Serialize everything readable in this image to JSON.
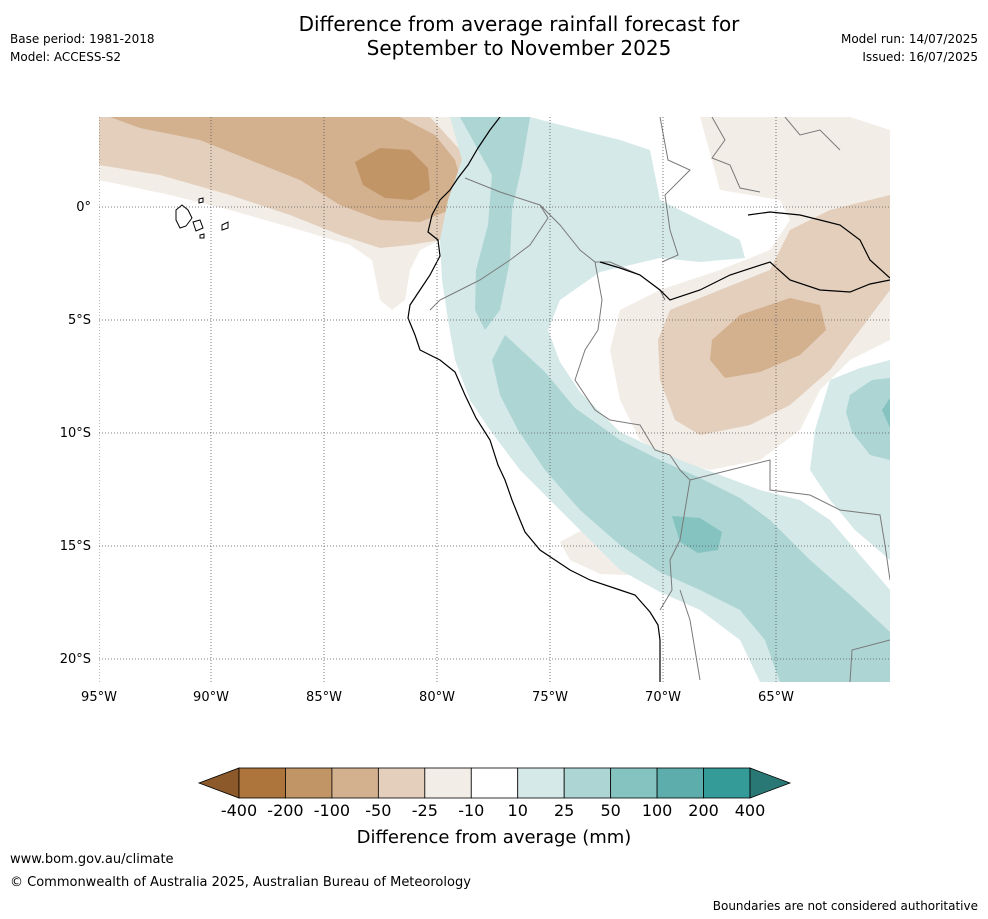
{
  "header": {
    "title_line1": "Difference from average rainfall forecast for",
    "title_line2": "September to November 2025",
    "base_period": "Base period: 1981-2018",
    "model": "Model: ACCESS-S2",
    "model_run": "Model run: 14/07/2025",
    "issued": "Issued: 16/07/2025"
  },
  "map": {
    "lat_labels": [
      "0°",
      "5°S",
      "10°S",
      "15°S",
      "20°S"
    ],
    "lon_labels": [
      "95°W",
      "90°W",
      "85°W",
      "80°W",
      "75°W",
      "70°W",
      "65°W"
    ],
    "land_color": "#ffffff"
  },
  "legend": {
    "title": "Difference from average (mm)",
    "tick_labels": [
      "-400",
      "-200",
      "-100",
      "-50",
      "-25",
      "-10",
      "10",
      "25",
      "50",
      "100",
      "200",
      "400"
    ],
    "colors": [
      "#8c5a2a",
      "#ad753c",
      "#c19566",
      "#d3b08e",
      "#e3cfbc",
      "#f2ede7",
      "#ffffff",
      "#d5e9e8",
      "#acd5d4",
      "#85c3c1",
      "#5dadac",
      "#359b98",
      "#2a7876"
    ]
  },
  "footer": {
    "url": "www.bom.gov.au/climate",
    "copyright": "© Commonwealth of Australia 2025, Australian Bureau of Meteorology",
    "note": "Boundaries are not considered authoritative"
  }
}
